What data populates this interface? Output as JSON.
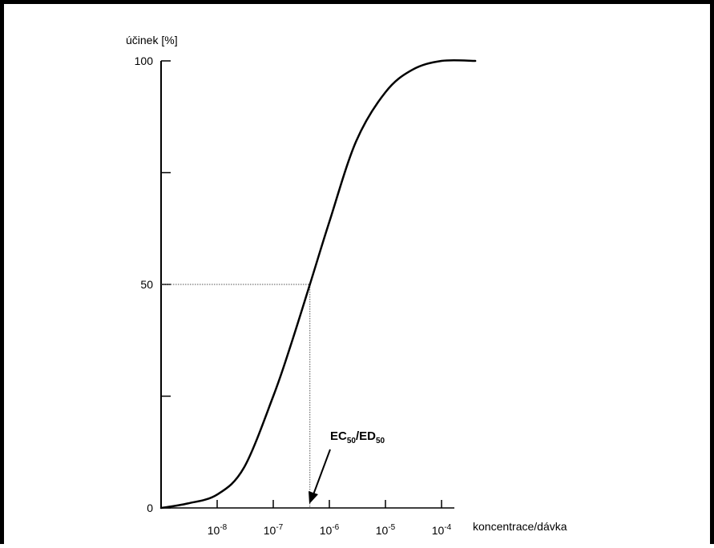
{
  "chart_data": {
    "type": "line",
    "ylabel": "účinek [%]",
    "xlabel": "koncentrace/dávka",
    "x_scale": "log",
    "ylim": [
      0,
      100
    ],
    "xlim": [
      1e-09,
      0.001
    ],
    "y_ticks": [
      {
        "value": 0,
        "label": "0"
      },
      {
        "value": 25,
        "label": ""
      },
      {
        "value": 50,
        "label": "50"
      },
      {
        "value": 75,
        "label": ""
      },
      {
        "value": 100,
        "label": "100"
      }
    ],
    "x_ticks": [
      {
        "value": 1e-08,
        "base": "10",
        "exp": "-8"
      },
      {
        "value": 1e-07,
        "base": "10",
        "exp": "-7"
      },
      {
        "value": 1e-06,
        "base": "10",
        "exp": "-6"
      },
      {
        "value": 1e-05,
        "base": "10",
        "exp": "-5"
      },
      {
        "value": 0.0001,
        "base": "10",
        "exp": "-4"
      }
    ],
    "series": [
      {
        "x": [
          1e-09,
          3e-09,
          1e-08,
          3e-08,
          1e-07,
          2e-07,
          4.5e-07,
          1e-06,
          3e-06,
          1e-05,
          3e-05,
          0.0001,
          0.0004
        ],
        "y": [
          0,
          1,
          3,
          9,
          25,
          36,
          50,
          64,
          82,
          93,
          98,
          100,
          100
        ]
      }
    ],
    "grid": false,
    "annotation": {
      "label_main_1": "EC",
      "label_sub_1": "50",
      "label_sep": "/ED",
      "label_sub_2": "50",
      "x": 4.5e-07,
      "y": 50
    }
  }
}
